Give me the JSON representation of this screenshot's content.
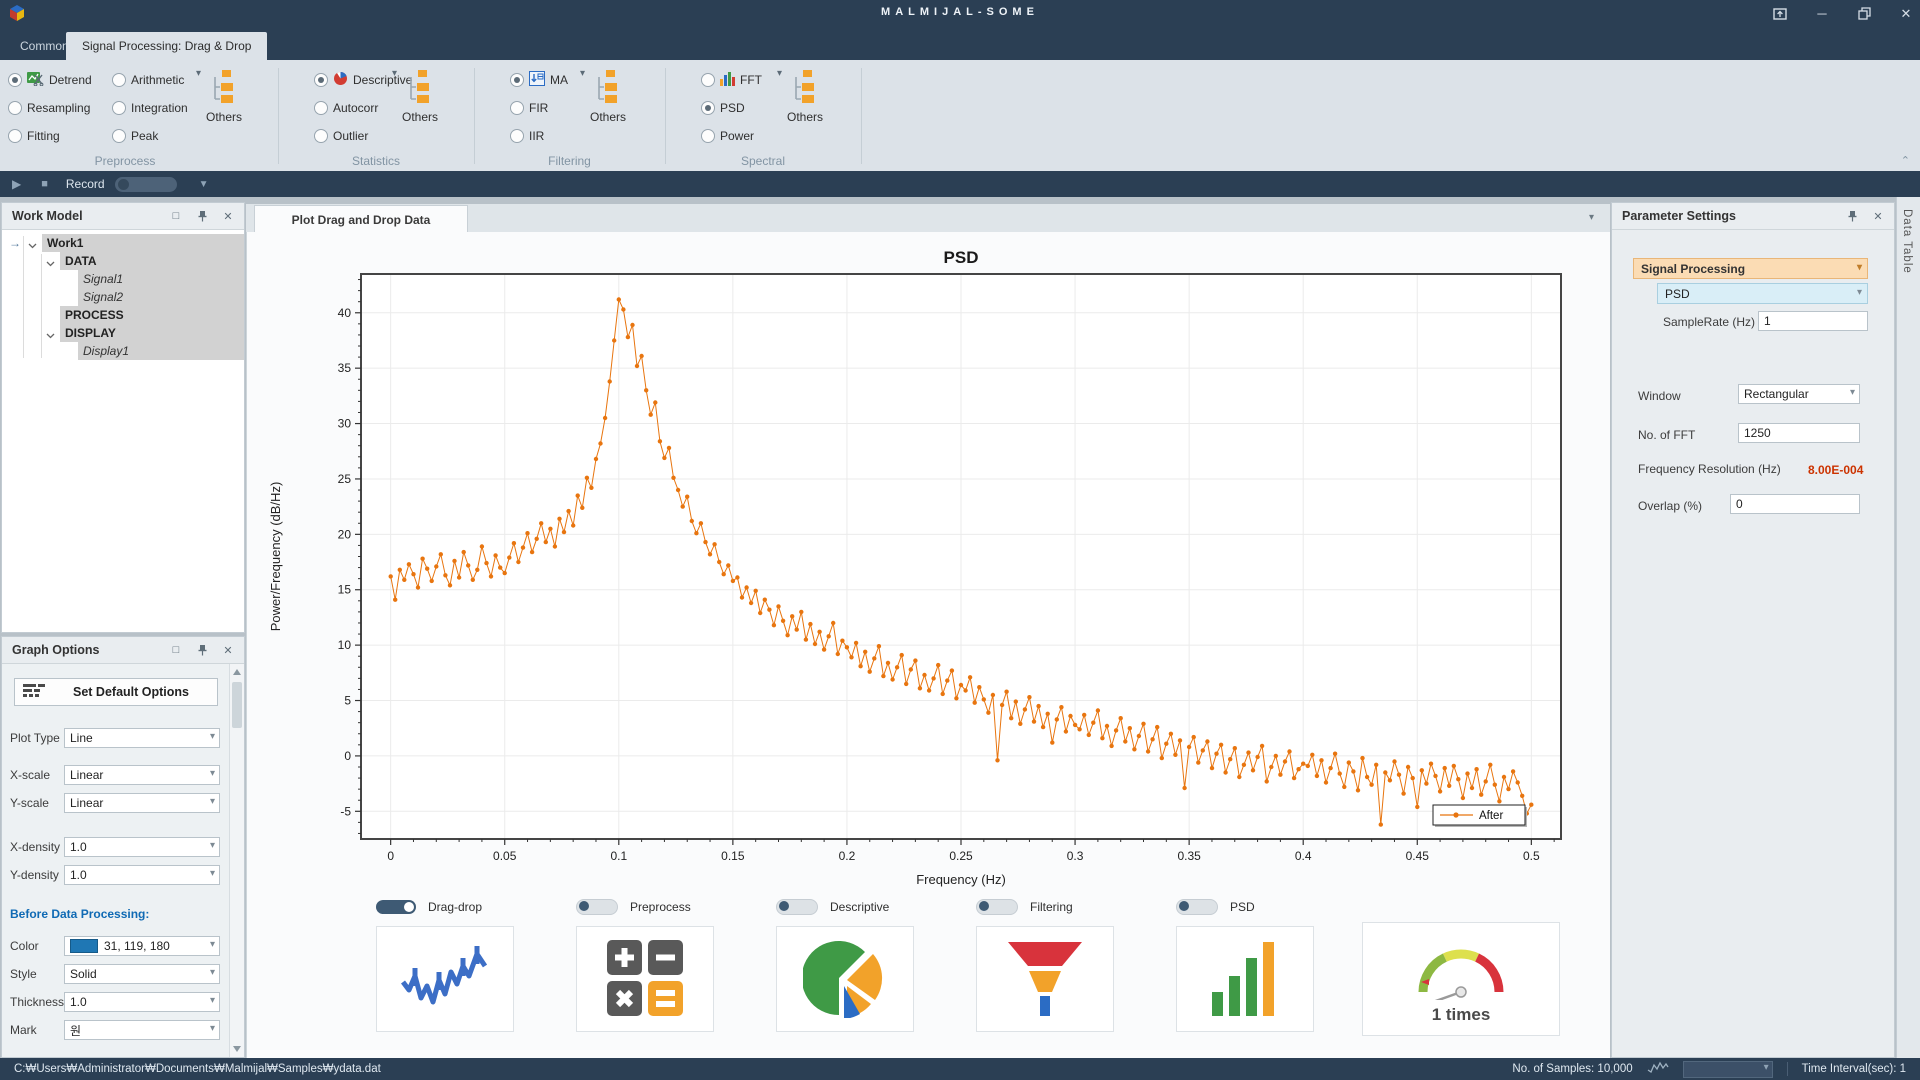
{
  "window": {
    "title": "MALMIJAL-SOME",
    "controls": {
      "popout": "popout",
      "minimize": "minimize",
      "restore": "restore",
      "close": "close"
    }
  },
  "ribbon_tabs": {
    "common": "Common",
    "active": "Signal Processing: Drag & Drop"
  },
  "ribbon": {
    "groups": [
      {
        "label": "Preprocess",
        "others_label": "Others",
        "items": [
          {
            "label": "Detrend",
            "selected": true
          },
          {
            "label": "Resampling",
            "selected": false
          },
          {
            "label": "Fitting",
            "selected": false
          },
          {
            "label": "Arithmetic",
            "selected": false
          },
          {
            "label": "Integration",
            "selected": false
          },
          {
            "label": "Peak",
            "selected": false
          }
        ]
      },
      {
        "label": "Statistics",
        "others_label": "Others",
        "items": [
          {
            "label": "Descriptive",
            "selected": true
          },
          {
            "label": "Autocorr",
            "selected": false
          },
          {
            "label": "Outlier",
            "selected": false
          }
        ]
      },
      {
        "label": "Filtering",
        "others_label": "Others",
        "items": [
          {
            "label": "MA",
            "selected": true
          },
          {
            "label": "FIR",
            "selected": false
          },
          {
            "label": "IIR",
            "selected": false
          }
        ]
      },
      {
        "label": "Spectral",
        "others_label": "Others",
        "items": [
          {
            "label": "FFT",
            "selected": false
          },
          {
            "label": "PSD",
            "selected": true
          },
          {
            "label": "Power",
            "selected": false
          }
        ]
      }
    ]
  },
  "record_bar": {
    "label": "Record"
  },
  "work_model": {
    "title": "Work Model",
    "tree": [
      {
        "label": "Work1"
      },
      {
        "label": "DATA"
      },
      {
        "label": "Signal1"
      },
      {
        "label": "Signal2"
      },
      {
        "label": "PROCESS"
      },
      {
        "label": "DISPLAY"
      },
      {
        "label": "Display1"
      }
    ]
  },
  "graph_options": {
    "title": "Graph Options",
    "set_default_button": "Set Default Options",
    "fields": [
      {
        "label": "Plot Type",
        "value": "Line"
      },
      {
        "label": "X-scale",
        "value": "Linear"
      },
      {
        "label": "Y-scale",
        "value": "Linear"
      },
      {
        "label": "X-density",
        "value": "1.0"
      },
      {
        "label": "Y-density",
        "value": "1.0"
      }
    ],
    "section_heading": "Before Data Processing:",
    "fields2": [
      {
        "label": "Color",
        "value": "31, 119, 180"
      },
      {
        "label": "Style",
        "value": "Solid"
      },
      {
        "label": "Thickness",
        "value": "1.0"
      },
      {
        "label": "Mark",
        "value": "원"
      }
    ],
    "swatch_color": "#1f77b4"
  },
  "plot_doc": {
    "tab": "Plot Drag and Drop Data"
  },
  "chart_data": {
    "type": "line",
    "title": "PSD",
    "xlabel": "Frequency (Hz)",
    "ylabel": "Power/Frequency (dB/Hz)",
    "xlim": [
      -0.013,
      0.513
    ],
    "ylim": [
      -7.5,
      43.5
    ],
    "xticks": [
      0,
      0.05,
      0.1,
      0.15,
      0.2,
      0.25,
      0.3,
      0.35,
      0.4,
      0.45,
      0.5
    ],
    "xtick_labels": [
      "0",
      "0.05",
      "0.1",
      "0.15",
      "0.2",
      "0.25",
      "0.3",
      "0.35",
      "0.4",
      "0.45",
      "0.5"
    ],
    "yticks": [
      -5,
      0,
      5,
      10,
      15,
      20,
      25,
      30,
      35,
      40
    ],
    "ytick_labels": [
      "-5",
      "0",
      "5",
      "10",
      "15",
      "20",
      "25",
      "30",
      "35",
      "40"
    ],
    "grid": true,
    "legend_position": "lower right",
    "series": [
      {
        "name": "After",
        "color": "#e8750f",
        "marker": "circle",
        "x_start": 0,
        "x_step": 0.002,
        "y": [
          16.2,
          14.1,
          16.8,
          15.9,
          17.3,
          16.4,
          15.2,
          17.8,
          16.9,
          15.8,
          17.1,
          18.2,
          16.3,
          15.4,
          17.6,
          16.1,
          18.4,
          17.2,
          15.9,
          16.8,
          18.9,
          17.4,
          16.2,
          18.1,
          17.0,
          16.5,
          17.9,
          19.2,
          17.5,
          18.8,
          20.1,
          18.4,
          19.6,
          21.0,
          19.3,
          20.5,
          18.9,
          21.4,
          20.2,
          22.1,
          20.8,
          23.5,
          22.4,
          25.1,
          24.2,
          26.8,
          28.2,
          30.5,
          33.8,
          37.5,
          41.2,
          40.3,
          37.8,
          38.9,
          35.2,
          36.1,
          33.0,
          30.8,
          31.9,
          28.4,
          26.9,
          27.8,
          25.1,
          24.0,
          22.5,
          23.4,
          21.2,
          20.1,
          21.0,
          19.3,
          18.2,
          19.1,
          17.5,
          16.4,
          17.2,
          15.8,
          16.1,
          14.3,
          15.2,
          13.8,
          14.9,
          12.9,
          14.1,
          13.2,
          11.8,
          13.5,
          12.2,
          10.9,
          12.6,
          11.4,
          13.0,
          10.5,
          11.9,
          10.1,
          11.2,
          9.6,
          10.8,
          12.0,
          9.2,
          10.4,
          9.8,
          8.9,
          10.2,
          8.1,
          9.4,
          7.6,
          8.8,
          9.9,
          7.2,
          8.4,
          6.9,
          8.0,
          9.1,
          6.5,
          7.8,
          8.6,
          6.1,
          7.3,
          5.9,
          7.0,
          8.2,
          5.6,
          6.8,
          7.7,
          5.2,
          6.4,
          5.9,
          7.1,
          4.8,
          6.2,
          5.1,
          3.9,
          5.5,
          -0.4,
          4.6,
          5.8,
          3.4,
          4.9,
          2.9,
          4.2,
          5.3,
          3.1,
          4.5,
          2.6,
          3.8,
          1.2,
          3.3,
          4.4,
          2.2,
          3.6,
          2.8,
          2.4,
          3.7,
          1.9,
          3.0,
          4.1,
          1.6,
          2.7,
          0.9,
          2.3,
          3.4,
          1.3,
          2.5,
          0.6,
          1.8,
          2.9,
          0.4,
          1.5,
          2.6,
          -0.2,
          1.1,
          2.0,
          0.1,
          1.4,
          -2.9,
          0.8,
          1.7,
          -0.6,
          0.5,
          1.3,
          -1.1,
          0.2,
          1.0,
          -1.5,
          -0.3,
          0.7,
          -1.9,
          -0.8,
          0.3,
          -1.3,
          -0.1,
          0.9,
          -2.3,
          -1.0,
          0.0,
          -1.7,
          -0.5,
          0.4,
          -2.0,
          -1.2,
          -0.7,
          -0.9,
          0.1,
          -1.8,
          -0.4,
          -2.4,
          -1.1,
          0.2,
          -1.6,
          -2.8,
          -0.6,
          -1.4,
          -3.1,
          -0.2,
          -1.9,
          -2.6,
          -0.8,
          -6.2,
          -1.5,
          -2.2,
          -0.5,
          -1.7,
          -3.4,
          -1.0,
          -2.0,
          -4.6,
          -1.3,
          -2.5,
          -0.7,
          -1.8,
          -3.2,
          -1.1,
          -2.7,
          -0.9,
          -2.1,
          -3.8,
          -1.6,
          -2.9,
          -1.2,
          -3.5,
          -2.3,
          -0.8,
          -2.6,
          -4.1,
          -1.9,
          -3.0,
          -1.4,
          -2.4,
          -3.6,
          -5.2,
          -4.4
        ]
      }
    ]
  },
  "toggles": [
    {
      "label": "Drag-drop",
      "on": true
    },
    {
      "label": "Preprocess",
      "on": false
    },
    {
      "label": "Descriptive",
      "on": false
    },
    {
      "label": "Filtering",
      "on": false
    },
    {
      "label": "PSD",
      "on": false
    }
  ],
  "cards": {
    "gauge_label": "1 times"
  },
  "parameter_settings": {
    "title": "Parameter Settings",
    "category": "Signal Processing",
    "method": "PSD",
    "sample_rate_label": "SampleRate (Hz)",
    "sample_rate": "1",
    "window_label": "Window",
    "window": "Rectangular",
    "nfft_label": "No. of FFT",
    "nfft": "1250",
    "freq_res_label": "Frequency Resolution (Hz)",
    "freq_res": "8.00E-004",
    "overlap_label": "Overlap (%)",
    "overlap": "0"
  },
  "side_tab": "Data Table",
  "status_bar": {
    "path": "C:₩Users₩Administrator₩Documents₩Malmijal₩Samples₩ydata.dat",
    "samples": "No. of Samples: 10,000",
    "interval": "Time Interval(sec): 1"
  },
  "colors": {
    "accent_orange": "#e8750f",
    "swatch_blue": "#1f77b4",
    "freq_res_red": "#cc3300",
    "titlebar": "#2b3f54"
  }
}
